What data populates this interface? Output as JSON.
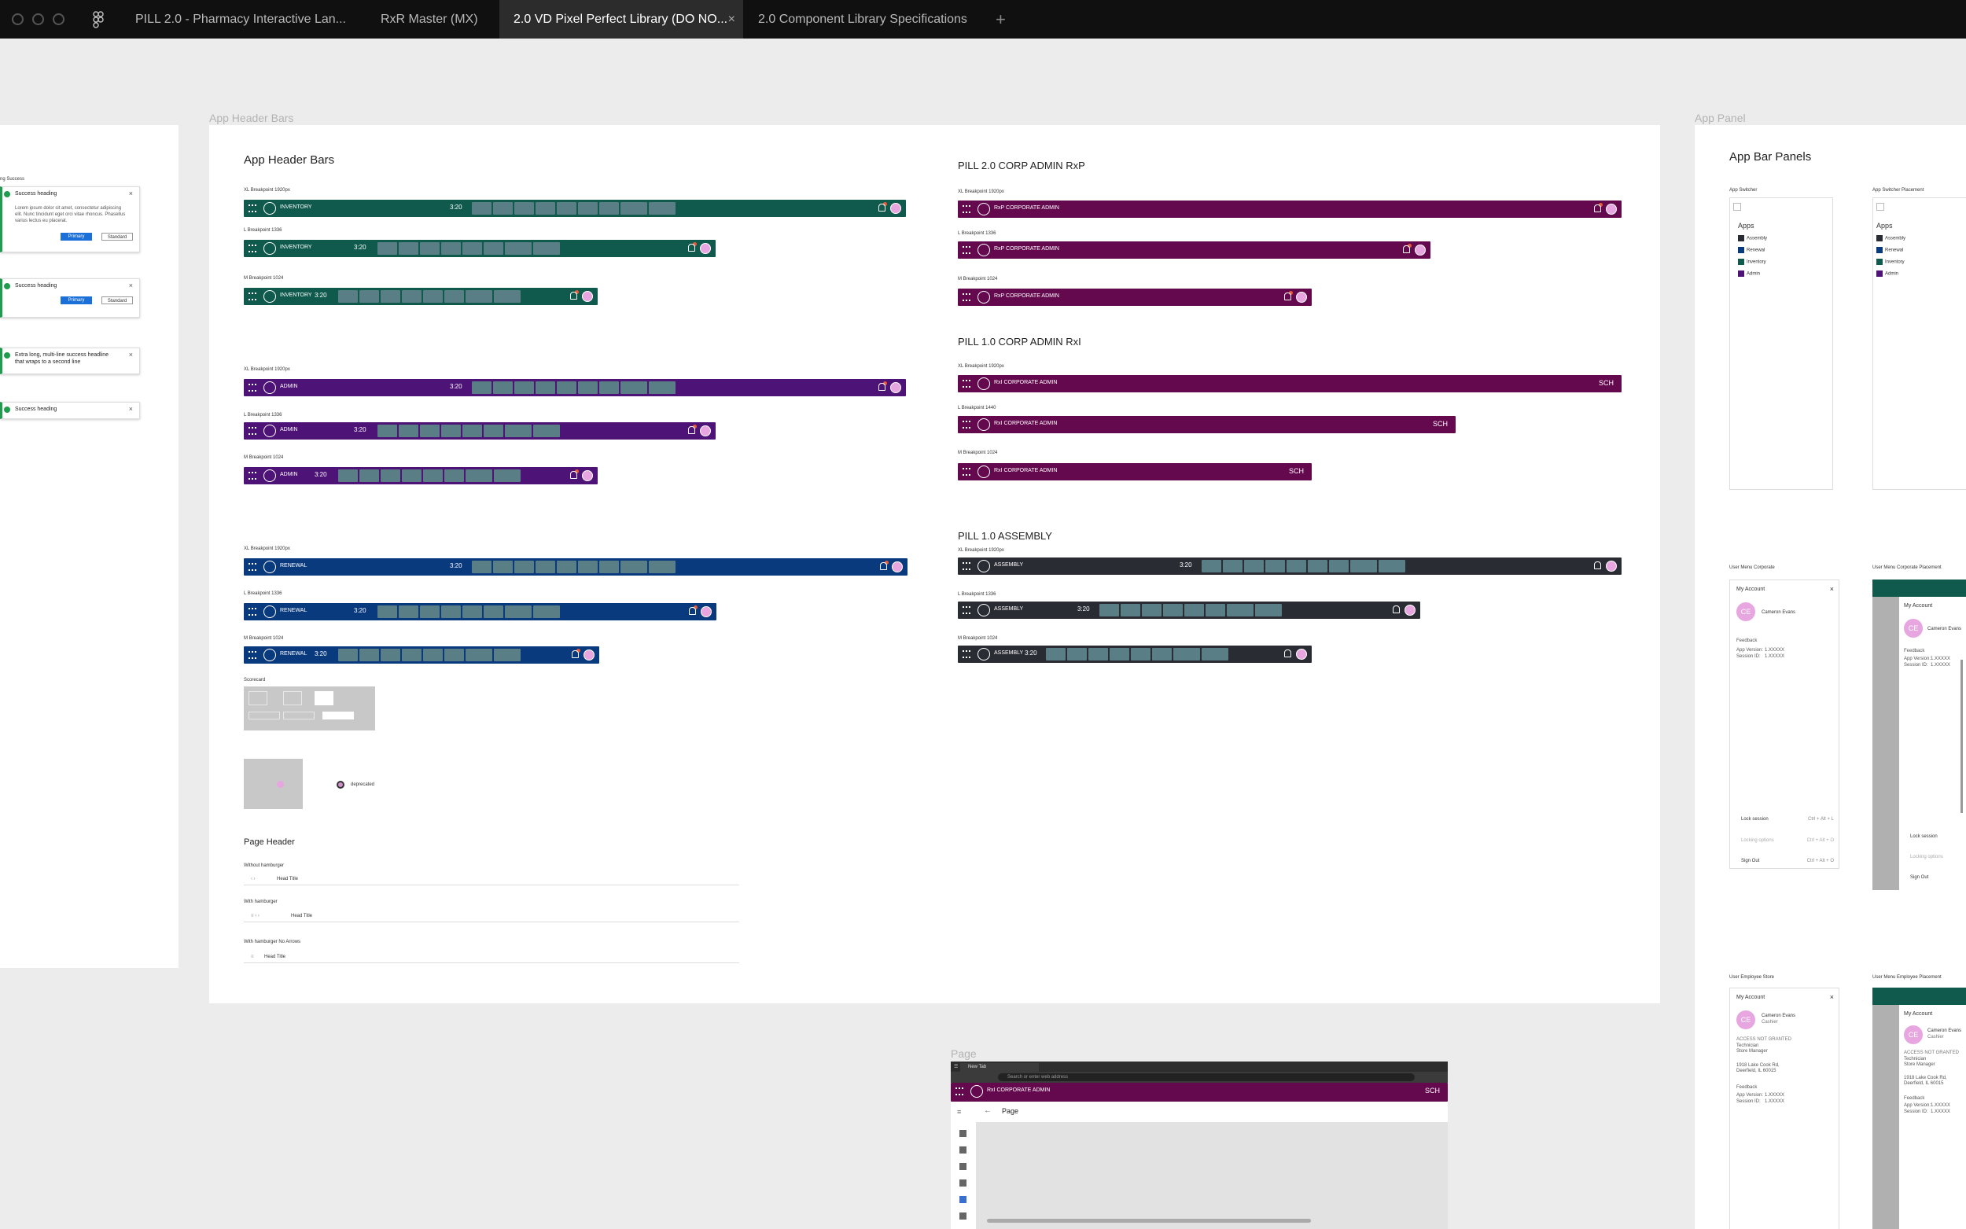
{
  "titlebar": {
    "tabs": [
      {
        "label": "PILL 2.0 - Pharmacy Interactive Lan..."
      },
      {
        "label": "RxR Master (MX)"
      },
      {
        "label": "2.0 VD Pixel Perfect Library (DO NO...",
        "active": true
      },
      {
        "label": "2.0 Component Library Specifications"
      }
    ],
    "close_glyph": "×",
    "plus_glyph": "+"
  },
  "colors": {
    "inventory": "#0f5a4c",
    "admin": "#4e1376",
    "renewal": "#0a3a7e",
    "corp": "#65094f",
    "assembly": "#2a2c33",
    "success": "#1f9d4d",
    "primary": "#1b6fd8"
  },
  "frames": {
    "header_bars_label": "App Header Bars",
    "app_panel_label": "App Panel",
    "page_label": "Page"
  },
  "toasts": {
    "partial_label": "ng Success",
    "items": [
      {
        "title": "Success heading",
        "body1": "Lorem ipsum dolor sit amet, consectetur adipiscing",
        "body2": "elit. Nunc tincidunt eget orci vitae rhoncus. Phasellus",
        "body3": "varius lectus eu placerat.",
        "primary": "Primary",
        "standard": "Standard"
      },
      {
        "title": "Success heading",
        "primary": "Primary",
        "standard": "Standard"
      },
      {
        "title": "Extra long, multi-line success headline",
        "title2": "that wraps to a second line"
      },
      {
        "title": "Success heading"
      }
    ]
  },
  "left": {
    "title": "App Header Bars",
    "xl": "XL Breakpoint 1920px",
    "l": "L Breakpoint 1336",
    "m": "M Breakpoint 1024",
    "inventory": "INVENTORY",
    "admin": "ADMIN",
    "renewal": "RENEWAL",
    "clock": "3:20",
    "scorecard": "Scorecard",
    "deprecated": "deprecated",
    "page_header": "Page Header",
    "without_hamburger": "Without hamburger",
    "with_hamburger": "With hamburger",
    "with_hamburger_no_arrows": "With hamburger No Arrows",
    "head_title": "Head Title"
  },
  "right": {
    "pill2_title": "PILL 2.0 CORP ADMIN RxP",
    "pill1_title": "PILL 1.0 CORP ADMIN RxI",
    "assembly_title": "PILL 1.0 ASSEMBLY",
    "xl": "XL Breakpoint 1920px",
    "l1336": "L Breakpoint 1336",
    "l1440": "L Breakpoint 1440",
    "m": "M Breakpoint 1024",
    "rxp_admin": "RxP CORPORATE ADMIN",
    "rxi_admin": "RxI CORPORATE ADMIN",
    "assembly": "ASSEMBLY",
    "sch": "SCH",
    "clock": "3:20"
  },
  "panels": {
    "title": "App Bar Panels",
    "app_switcher": "App Switcher",
    "app_switcher_placement": "App Switcher Placement",
    "apps": "Apps",
    "app_items": [
      "Assembly",
      "Renewal",
      "Inventory",
      "Admin"
    ],
    "user_menu_corporate": "User Menu Corporate",
    "user_menu_corporate_placement": "User Menu Corporate Placement",
    "user_employee_store": "User Employee Store",
    "user_menu_employee_placement": "User Menu Employee Placement",
    "my_account": "My Account",
    "initials": "CE",
    "user_name": "Cameron Evans",
    "cashier": "Cashier",
    "feedback": "Feedback",
    "app_version": "App Version:",
    "app_version_value": "1.XXXXX",
    "session_id": "Session ID:",
    "session_value": "1.XXXXX",
    "lock_session": "Lock session",
    "lock_shortcut": "Ctrl + Alt + L",
    "locking_options": "Locking options",
    "locking_shortcut": "Ctrl + Alt + O",
    "sign_out": "Sign Out",
    "sign_out_shortcut": "Ctrl + Alt + O",
    "access_not_granted": "ACCESS NOT GRANTED",
    "access_items": [
      "Technician",
      "Store Manager"
    ],
    "address1": "1918 Lake Cook Rd,",
    "address2": "Deerfield, IL 60015"
  },
  "page_frame": {
    "browser_tab": "New Tab",
    "address_placeholder": "Search or enter web address",
    "app_title": "RxI CORPORATE ADMIN",
    "sch": "SCH",
    "page_title": "Page",
    "back_arrow": "←"
  }
}
